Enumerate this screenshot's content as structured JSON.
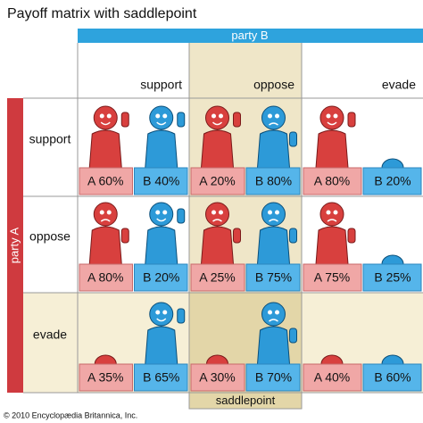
{
  "title": "Payoff matrix with saddlepoint",
  "party_b": "party B",
  "party_a": "party A",
  "columns": [
    "support",
    "oppose",
    "evade"
  ],
  "rows": [
    "support",
    "oppose",
    "evade"
  ],
  "cells": [
    [
      {
        "a": "A 60%",
        "b": "B 40%"
      },
      {
        "a": "A 20%",
        "b": "B 80%"
      },
      {
        "a": "A 80%",
        "b": "B 20%"
      }
    ],
    [
      {
        "a": "A 80%",
        "b": "B 20%"
      },
      {
        "a": "A 25%",
        "b": "B 75%"
      },
      {
        "a": "A 75%",
        "b": "B 25%"
      }
    ],
    [
      {
        "a": "A 35%",
        "b": "B 65%"
      },
      {
        "a": "A 30%",
        "b": "B 70%"
      },
      {
        "a": "A 40%",
        "b": "B 60%"
      }
    ]
  ],
  "saddlepoint": "saddlepoint",
  "copyright": "© 2010 Encyclopædia Britannica, Inc."
}
